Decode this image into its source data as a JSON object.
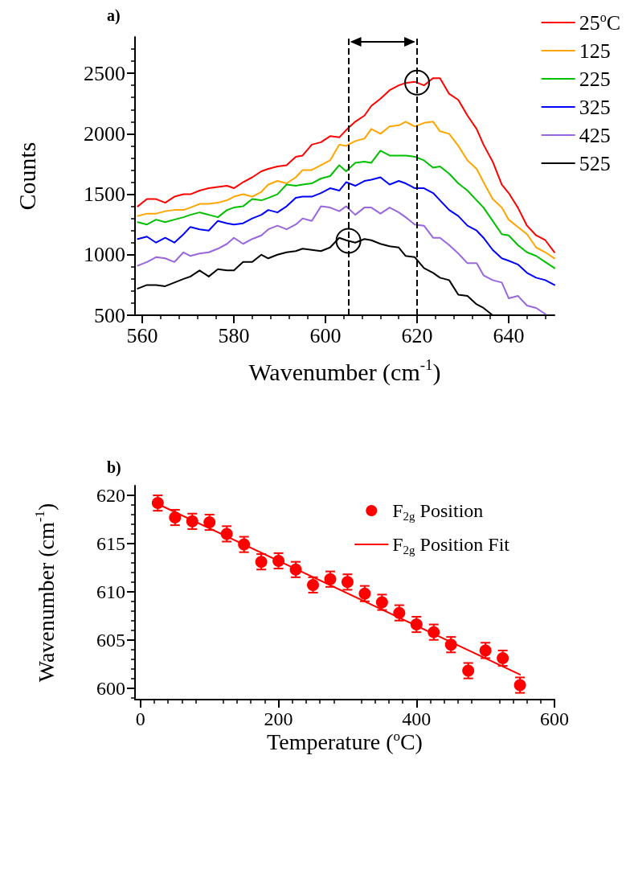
{
  "chart_data": [
    {
      "type": "line",
      "title": "a)",
      "xlabel": "Wavenumber (cm$^{-1}$)",
      "ylabel": "Counts",
      "xlim": [
        558.4,
        650
      ],
      "xticks": [
        560,
        580,
        600,
        620,
        640
      ],
      "ylim": [
        500,
        2800
      ],
      "yticks": [
        500,
        1000,
        1500,
        2000,
        2500
      ],
      "grid": false,
      "legend": "top right",
      "line_style": "solid",
      "x": [
        559,
        561,
        563,
        565,
        567,
        569,
        570.5,
        572.5,
        574.5,
        576.5,
        578.5,
        580,
        582,
        584,
        586,
        587.5,
        589.5,
        591.5,
        593.5,
        595,
        597,
        599,
        601,
        603,
        604.5,
        606.5,
        608.5,
        610,
        612,
        614,
        616,
        617.5,
        619.5,
        621.5,
        623.5,
        625,
        627,
        629,
        631,
        633,
        634.5,
        636.5,
        638.5,
        640,
        642,
        644,
        646,
        648,
        650
      ],
      "series": [
        {
          "name": "25$^{o}$C",
          "color": "#ff0000",
          "values": [
            1400,
            1460,
            1460,
            1430,
            1480,
            1500,
            1500,
            1530,
            1550,
            1560,
            1570,
            1550,
            1600,
            1640,
            1690,
            1710,
            1730,
            1740,
            1810,
            1820,
            1910,
            1930,
            1980,
            1970,
            2030,
            2100,
            2150,
            2230,
            2290,
            2360,
            2400,
            2420,
            2430,
            2400,
            2460,
            2460,
            2330,
            2280,
            2150,
            2040,
            1910,
            1770,
            1580,
            1510,
            1390,
            1240,
            1160,
            1120,
            1020
          ]
        },
        {
          "name": "125",
          "color": "#ffa500",
          "values": [
            1320,
            1340,
            1340,
            1360,
            1370,
            1370,
            1390,
            1420,
            1420,
            1430,
            1450,
            1480,
            1500,
            1480,
            1520,
            1580,
            1610,
            1590,
            1640,
            1700,
            1700,
            1740,
            1780,
            1910,
            1900,
            1940,
            1960,
            2040,
            2000,
            2060,
            2070,
            2100,
            2060,
            2090,
            2100,
            2020,
            2000,
            1900,
            1780,
            1710,
            1600,
            1460,
            1390,
            1290,
            1230,
            1170,
            1060,
            1020,
            970
          ]
        },
        {
          "name": "225",
          "color": "#00c000",
          "values": [
            1270,
            1250,
            1290,
            1270,
            1290,
            1310,
            1330,
            1350,
            1330,
            1310,
            1370,
            1390,
            1400,
            1460,
            1450,
            1470,
            1500,
            1580,
            1570,
            1580,
            1590,
            1630,
            1650,
            1740,
            1690,
            1760,
            1770,
            1760,
            1860,
            1820,
            1820,
            1820,
            1810,
            1780,
            1720,
            1730,
            1670,
            1590,
            1530,
            1450,
            1390,
            1280,
            1170,
            1160,
            1080,
            1020,
            990,
            940,
            890
          ]
        },
        {
          "name": "325",
          "color": "#0000ff",
          "values": [
            1130,
            1150,
            1100,
            1140,
            1100,
            1170,
            1230,
            1210,
            1200,
            1280,
            1260,
            1250,
            1260,
            1300,
            1330,
            1370,
            1350,
            1400,
            1470,
            1480,
            1480,
            1510,
            1550,
            1530,
            1600,
            1570,
            1610,
            1620,
            1640,
            1580,
            1610,
            1590,
            1550,
            1550,
            1510,
            1450,
            1370,
            1320,
            1240,
            1200,
            1140,
            1040,
            970,
            950,
            920,
            850,
            810,
            790,
            750
          ]
        },
        {
          "name": "425",
          "color": "#9966dd",
          "values": [
            910,
            940,
            980,
            970,
            940,
            1020,
            990,
            1010,
            1020,
            1050,
            1090,
            1140,
            1090,
            1130,
            1160,
            1210,
            1240,
            1210,
            1250,
            1300,
            1280,
            1400,
            1390,
            1360,
            1400,
            1330,
            1390,
            1390,
            1340,
            1390,
            1350,
            1310,
            1250,
            1240,
            1140,
            1140,
            1080,
            1010,
            930,
            930,
            830,
            790,
            770,
            640,
            660,
            580,
            560,
            510,
            null
          ]
        },
        {
          "name": "525",
          "color": "#000000",
          "values": [
            720,
            750,
            750,
            740,
            770,
            800,
            820,
            870,
            820,
            880,
            870,
            870,
            940,
            940,
            1000,
            970,
            1000,
            1020,
            1030,
            1050,
            1040,
            1030,
            1060,
            1140,
            1120,
            1100,
            1130,
            1120,
            1090,
            1070,
            1060,
            990,
            980,
            890,
            850,
            810,
            790,
            670,
            660,
            590,
            560,
            500,
            null,
            null,
            null,
            null,
            null,
            null,
            null
          ]
        }
      ],
      "ref_lines": [
        {
          "axis": "x",
          "value": 605,
          "color": "#000000",
          "line_style": "dashed"
        },
        {
          "axis": "x",
          "value": 620,
          "color": "#000000",
          "line_style": "dashed"
        }
      ]
    },
    {
      "type": "scatter",
      "title": "b)",
      "xlabel": "Temperature ($^{o}$C)",
      "ylabel": "Wavenumber (cm$^{-1}$)",
      "xlim": [
        -8,
        600
      ],
      "xticks": [
        0,
        200,
        400,
        600
      ],
      "ylim": [
        598.8,
        621
      ],
      "yticks": [
        600,
        605,
        610,
        615,
        620
      ],
      "grid": false,
      "legend": "top right",
      "x": [
        25,
        50,
        75,
        100,
        125,
        150,
        175,
        200,
        225,
        250,
        275,
        300,
        325,
        350,
        375,
        400,
        425,
        450,
        475,
        500,
        525,
        550
      ],
      "series": [
        {
          "name": "F$_{2g}$ Position",
          "color": "#ff0000",
          "marker": "circle",
          "values": [
            619.2,
            617.7,
            617.3,
            617.2,
            616.0,
            614.9,
            613.1,
            613.2,
            612.3,
            610.7,
            611.3,
            611.0,
            609.8,
            608.9,
            607.8,
            606.6,
            605.8,
            604.5,
            601.8,
            603.9,
            603.1,
            600.3
          ],
          "errors": [
            0.8,
            0.8,
            0.8,
            0.8,
            0.8,
            0.8,
            0.8,
            0.8,
            0.8,
            0.8,
            0.8,
            0.8,
            0.8,
            0.8,
            0.8,
            0.8,
            0.8,
            0.8,
            0.8,
            0.8,
            0.8,
            0.8
          ]
        },
        {
          "name": "F$_{2g}$ Position Fit",
          "type": "line",
          "color": "#ff0000",
          "line_style": "solid",
          "x": [
            25,
            550
          ],
          "values": [
            619.1,
            601.4
          ]
        }
      ]
    }
  ]
}
